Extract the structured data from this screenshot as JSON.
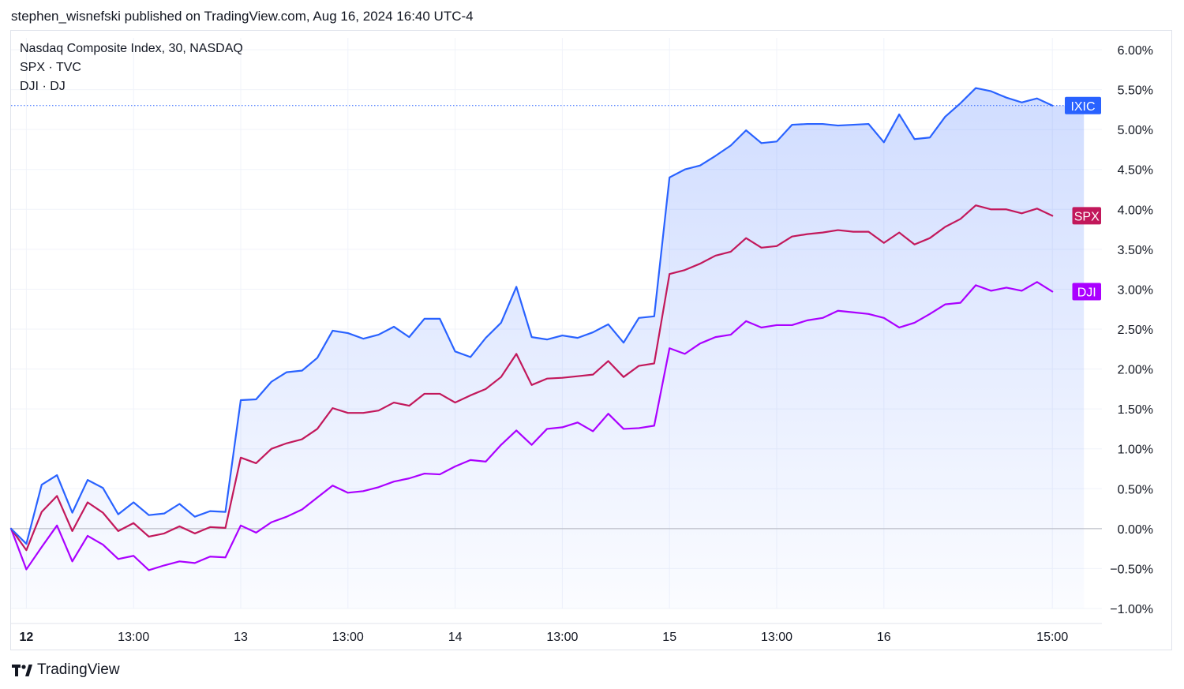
{
  "header": {
    "published_text": "stephen_wisnefski published on TradingView.com, Aug 16, 2024 16:40 UTC-4"
  },
  "legend": {
    "items": [
      "Nasdaq Composite Index, 30, NASDAQ",
      "SPX · TVC",
      "DJI · DJ"
    ]
  },
  "footer": {
    "brand": "TradingView"
  },
  "colors": {
    "ixic": "#2962ff",
    "spx": "#c2185b",
    "dji": "#aa00ff",
    "grid": "#f0f3fa",
    "zero_line": "#b2b5be"
  },
  "chart_data": {
    "type": "line",
    "title": "Nasdaq Composite Index, 30, NASDAQ",
    "xlabel": "",
    "ylabel": "",
    "grid": true,
    "y_unit": "%",
    "ylim": [
      -1.0,
      6.0
    ],
    "y_ticks": [
      "6.00%",
      "5.50%",
      "5.00%",
      "4.50%",
      "4.00%",
      "3.50%",
      "3.00%",
      "2.50%",
      "2.00%",
      "1.50%",
      "1.00%",
      "0.50%",
      "0.00%",
      "−0.50%",
      "−1.00%"
    ],
    "x_ticks": [
      {
        "label": "12",
        "bar": 1,
        "bold": true
      },
      {
        "label": "13:00",
        "bar": 8
      },
      {
        "label": "13",
        "bar": 15
      },
      {
        "label": "13:00",
        "bar": 22
      },
      {
        "label": "14",
        "bar": 29
      },
      {
        "label": "13:00",
        "bar": 36
      },
      {
        "label": "15",
        "bar": 43
      },
      {
        "label": "13:00",
        "bar": 50
      },
      {
        "label": "16",
        "bar": 57
      },
      {
        "label": "15:00",
        "bar": 68
      }
    ],
    "series": [
      {
        "name": "IXIC",
        "color": "#2962ff",
        "values": [
          0.0,
          -0.19,
          0.55,
          0.67,
          0.2,
          0.61,
          0.51,
          0.18,
          0.33,
          0.17,
          0.19,
          0.31,
          0.15,
          0.22,
          0.21,
          1.61,
          1.62,
          1.84,
          1.96,
          1.98,
          2.14,
          2.48,
          2.45,
          2.38,
          2.43,
          2.53,
          2.4,
          2.63,
          2.63,
          2.22,
          2.15,
          2.39,
          2.58,
          3.03,
          2.4,
          2.37,
          2.42,
          2.39,
          2.46,
          2.56,
          2.33,
          2.64,
          2.66,
          4.4,
          4.5,
          4.55,
          4.67,
          4.8,
          4.99,
          4.83,
          4.85,
          5.06,
          5.07,
          5.07,
          5.05,
          5.06,
          5.07,
          4.84,
          5.19,
          4.88,
          4.9,
          5.16,
          5.33,
          5.52,
          5.48,
          5.4,
          5.34,
          5.39,
          5.3
        ]
      },
      {
        "name": "SPX",
        "color": "#c2185b",
        "values": [
          0.0,
          -0.27,
          0.21,
          0.41,
          -0.03,
          0.33,
          0.2,
          -0.03,
          0.07,
          -0.1,
          -0.06,
          0.03,
          -0.06,
          0.02,
          0.01,
          0.89,
          0.82,
          1.0,
          1.07,
          1.12,
          1.25,
          1.51,
          1.45,
          1.45,
          1.48,
          1.58,
          1.54,
          1.69,
          1.69,
          1.58,
          1.67,
          1.75,
          1.9,
          2.19,
          1.8,
          1.88,
          1.89,
          1.91,
          1.93,
          2.1,
          1.9,
          2.04,
          2.07,
          3.19,
          3.24,
          3.32,
          3.42,
          3.47,
          3.64,
          3.52,
          3.54,
          3.66,
          3.69,
          3.71,
          3.74,
          3.72,
          3.72,
          3.58,
          3.71,
          3.56,
          3.64,
          3.78,
          3.88,
          4.05,
          4.0,
          4.0,
          3.95,
          4.01,
          3.92
        ]
      },
      {
        "name": "DJI",
        "color": "#aa00ff",
        "values": [
          0.0,
          -0.51,
          -0.23,
          0.04,
          -0.41,
          -0.09,
          -0.2,
          -0.38,
          -0.34,
          -0.52,
          -0.46,
          -0.41,
          -0.43,
          -0.35,
          -0.36,
          0.04,
          -0.05,
          0.08,
          0.15,
          0.24,
          0.39,
          0.54,
          0.45,
          0.47,
          0.52,
          0.59,
          0.63,
          0.69,
          0.68,
          0.78,
          0.86,
          0.84,
          1.05,
          1.23,
          1.05,
          1.25,
          1.27,
          1.33,
          1.22,
          1.44,
          1.25,
          1.26,
          1.29,
          2.26,
          2.19,
          2.32,
          2.4,
          2.43,
          2.6,
          2.52,
          2.55,
          2.55,
          2.61,
          2.64,
          2.73,
          2.71,
          2.69,
          2.64,
          2.52,
          2.58,
          2.69,
          2.81,
          2.83,
          3.05,
          2.98,
          3.02,
          2.98,
          3.09,
          2.97
        ]
      }
    ],
    "price_labels": [
      {
        "text": "IXIC",
        "series": "IXIC",
        "value": 5.3
      },
      {
        "text": "SPX",
        "series": "SPX",
        "value": 3.92
      },
      {
        "text": "DJI",
        "series": "DJI",
        "value": 2.97
      }
    ]
  }
}
